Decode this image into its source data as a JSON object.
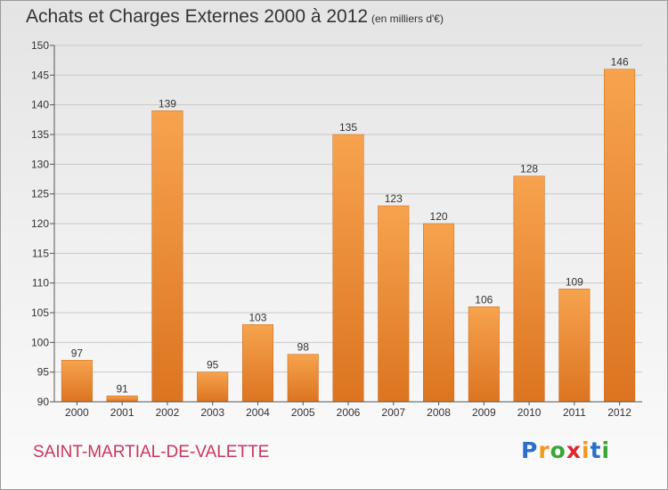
{
  "header": {
    "title": "Achats et Charges Externes 2000 à 2012",
    "subtitle": "(en milliers d'€)"
  },
  "footer": {
    "commune": "SAINT-MARTIAL-DE-VALETTE",
    "logo_letters": [
      "P",
      "r",
      "o",
      "x",
      "i",
      "t",
      "i"
    ],
    "logo_colors": [
      "#2a6fc9",
      "#f29a1d",
      "#3aa637",
      "#e0262f",
      "#f29a1d",
      "#2a6fc9",
      "#3aa637"
    ]
  },
  "colors": {
    "bar_light": "#f7a34e",
    "bar_dark": "#dc7420",
    "grid": "#c8c8c8",
    "axis": "#555555"
  },
  "chart_data": {
    "type": "bar",
    "categories": [
      "2000",
      "2001",
      "2002",
      "2003",
      "2004",
      "2005",
      "2006",
      "2007",
      "2008",
      "2009",
      "2010",
      "2011",
      "2012"
    ],
    "values": [
      97,
      91,
      139,
      95,
      103,
      98,
      135,
      123,
      120,
      106,
      128,
      109,
      146
    ],
    "data_labels": [
      "97",
      "91",
      "139",
      "95",
      "103",
      "98",
      "135",
      "123",
      "120",
      "106",
      "128",
      "109",
      "146"
    ],
    "ylim": [
      90,
      150
    ],
    "yticks": [
      90,
      95,
      100,
      105,
      110,
      115,
      120,
      125,
      130,
      135,
      140,
      145,
      150
    ],
    "grid": true
  }
}
